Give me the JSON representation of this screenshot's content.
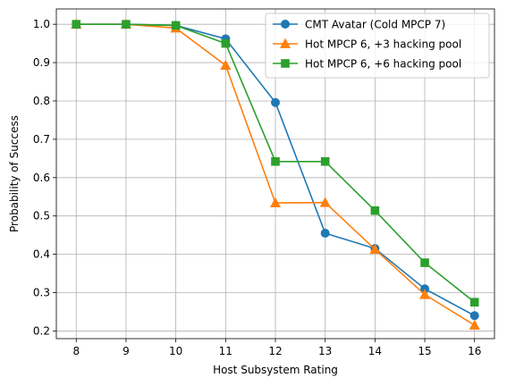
{
  "chart_data": {
    "type": "line",
    "xlabel": "Host Subsystem Rating",
    "ylabel": "Probability of Success",
    "x": [
      8,
      9,
      10,
      11,
      12,
      13,
      14,
      15,
      16
    ],
    "xlim": [
      7.6,
      16.4
    ],
    "ylim": [
      0.18,
      1.04
    ],
    "xticks": [
      "8",
      "9",
      "10",
      "11",
      "12",
      "13",
      "14",
      "15",
      "16"
    ],
    "yticks": [
      "0.2",
      "0.3",
      "0.4",
      "0.5",
      "0.6",
      "0.7",
      "0.8",
      "0.9",
      "1.0"
    ],
    "grid": true,
    "legend_position": "top-right",
    "series": [
      {
        "name": "CMT Avatar (Cold MPCP 7)",
        "color": "#1f77b4",
        "marker": "circle",
        "values": [
          1.0,
          1.0,
          0.997,
          0.962,
          0.796,
          0.455,
          0.415,
          0.31,
          0.24
        ]
      },
      {
        "name": "Hot MPCP 6, +3 hacking pool",
        "color": "#ff7f0e",
        "marker": "triangle",
        "values": [
          1.0,
          1.0,
          0.99,
          0.893,
          0.534,
          0.535,
          0.413,
          0.295,
          0.215
        ]
      },
      {
        "name": "Hot MPCP 6, +6 hacking pool",
        "color": "#2ca02c",
        "marker": "square",
        "values": [
          1.0,
          1.0,
          0.997,
          0.95,
          0.642,
          0.642,
          0.514,
          0.378,
          0.275
        ]
      }
    ]
  }
}
